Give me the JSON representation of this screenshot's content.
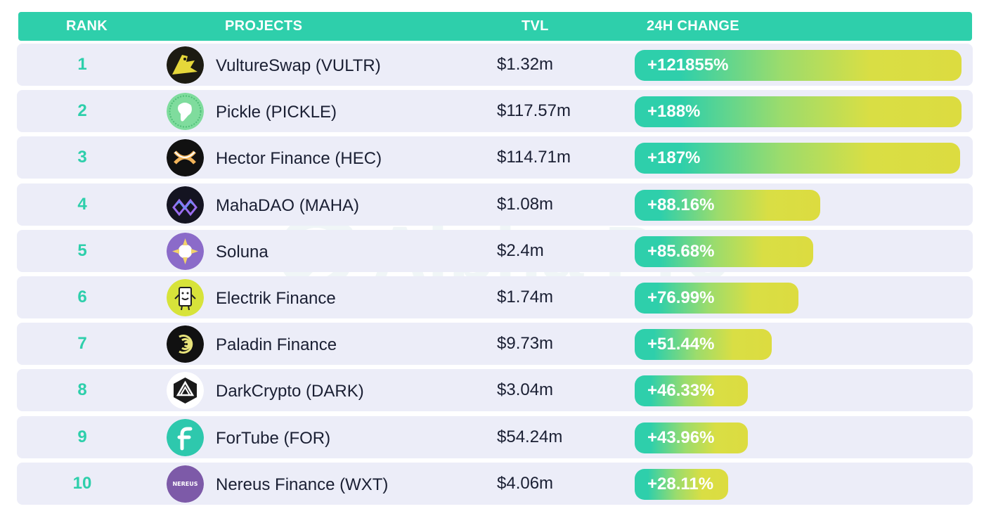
{
  "header": {
    "rank": "RANK",
    "projects": "PROJECTS",
    "tvl": "TVL",
    "change": "24H CHANGE"
  },
  "watermark": {
    "text": "Alpha Pro"
  },
  "colors": {
    "header": "#2ecfab",
    "row_bg": "#ecedf8",
    "rank_text": "#2ecfab",
    "bar_start": "#2ecfab",
    "bar_end": "#dcdc40"
  },
  "chart_data": {
    "type": "bar",
    "title": "",
    "categories": [
      "VultureSwap (VULTR)",
      "Pickle (PICKLE)",
      "Hector Finance (HEC)",
      "MahaDAO (MAHA)",
      "Soluna",
      "Electrik Finance",
      "Paladin Finance",
      "DarkCrypto (DARK)",
      "ForTube (FOR)",
      "Nereus Finance (WXT)"
    ],
    "values": [
      121855,
      188,
      187,
      88.16,
      85.68,
      76.99,
      51.44,
      46.33,
      43.96,
      28.11
    ],
    "rows": [
      {
        "rank": "1",
        "name": "VultureSwap (VULTR)",
        "tvl": "$1.32m",
        "change_label": "+121855%",
        "change": 121855,
        "bar_fraction": 1.0,
        "logo": "vulture-logo-icon",
        "logo_text": ""
      },
      {
        "rank": "2",
        "name": "Pickle (PICKLE)",
        "tvl": "$117.57m",
        "change_label": "+188%",
        "change": 188,
        "bar_fraction": 1.0,
        "logo": "pickle-logo-icon",
        "logo_text": ""
      },
      {
        "rank": "3",
        "name": "Hector Finance (HEC)",
        "tvl": "$114.71m",
        "change_label": "+187%",
        "change": 187,
        "bar_fraction": 0.995,
        "logo": "hector-logo-icon",
        "logo_text": ""
      },
      {
        "rank": "4",
        "name": "MahaDAO (MAHA)",
        "tvl": "$1.08m",
        "change_label": "+88.16%",
        "change": 88.16,
        "bar_fraction": 0.568,
        "logo": "maha-logo-icon",
        "logo_text": ""
      },
      {
        "rank": "5",
        "name": "Soluna",
        "tvl": "$2.4m",
        "change_label": "+85.68%",
        "change": 85.68,
        "bar_fraction": 0.546,
        "logo": "soluna-logo-icon",
        "logo_text": ""
      },
      {
        "rank": "6",
        "name": "Electrik Finance",
        "tvl": "$1.74m",
        "change_label": "+76.99%",
        "change": 76.99,
        "bar_fraction": 0.5,
        "logo": "electrik-logo-icon",
        "logo_text": ""
      },
      {
        "rank": "7",
        "name": "Paladin Finance",
        "tvl": "$9.73m",
        "change_label": "+51.44%",
        "change": 51.44,
        "bar_fraction": 0.42,
        "logo": "paladin-logo-icon",
        "logo_text": ""
      },
      {
        "rank": "8",
        "name": "DarkCrypto (DARK)",
        "tvl": "$3.04m",
        "change_label": "+46.33%",
        "change": 46.33,
        "bar_fraction": 0.347,
        "logo": "darkcrypto-logo-icon",
        "logo_text": ""
      },
      {
        "rank": "9",
        "name": "ForTube (FOR)",
        "tvl": "$54.24m",
        "change_label": "+43.96%",
        "change": 43.96,
        "bar_fraction": 0.347,
        "logo": "fortube-logo-icon",
        "logo_text": ""
      },
      {
        "rank": "10",
        "name": "Nereus Finance (WXT)",
        "tvl": "$4.06m",
        "change_label": "+28.11%",
        "change": 28.11,
        "bar_fraction": 0.285,
        "logo": "nereus-logo-icon",
        "logo_text": "NEREUS"
      }
    ],
    "columns": [
      "RANK",
      "PROJECTS",
      "TVL",
      "24H CHANGE"
    ],
    "grid": false,
    "legend": "none"
  }
}
